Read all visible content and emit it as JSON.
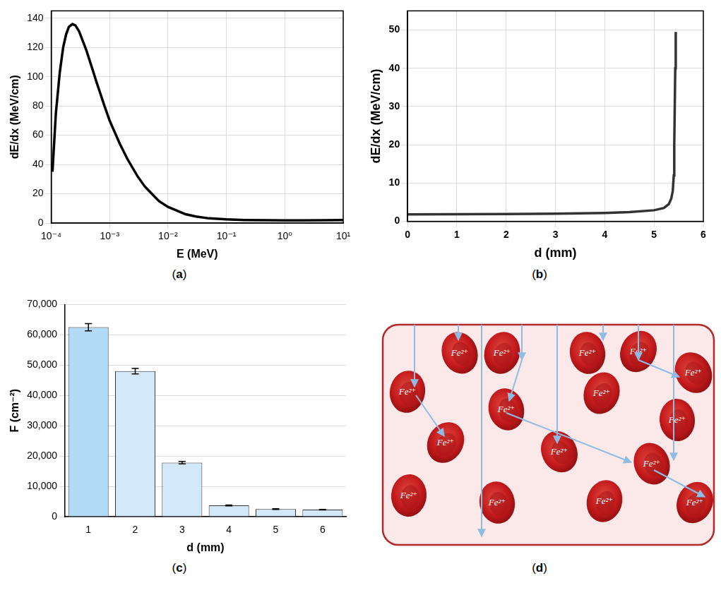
{
  "chart_data": [
    {
      "panel": "(a)",
      "type": "line",
      "x": [
        0.000105,
        0.00012,
        0.00014,
        0.00016,
        0.00018,
        0.0002,
        0.00023,
        0.00026,
        0.0003,
        0.0004,
        0.0005,
        0.0006,
        0.0007,
        0.0008,
        0.001,
        0.0015,
        0.002,
        0.003,
        0.004,
        0.005,
        0.007,
        0.01,
        0.02,
        0.03,
        0.05,
        0.1,
        0.2,
        0.5,
        1,
        2,
        5,
        10
      ],
      "values": [
        35,
        75,
        103,
        120,
        129,
        134,
        136,
        135,
        131,
        118,
        106,
        96,
        88,
        81,
        70,
        54,
        44,
        32,
        25,
        21,
        15,
        11,
        6,
        4.5,
        3.2,
        2.5,
        2.1,
        1.9,
        1.85,
        1.85,
        1.9,
        2.0
      ],
      "color": "#000000",
      "log": "x",
      "xlim": [
        0.0001,
        10
      ],
      "xticks": [
        {
          "value": 0.0001,
          "label": "10⁻⁴"
        },
        {
          "value": 0.001,
          "label": "10⁻³"
        },
        {
          "value": 0.01,
          "label": "10⁻²"
        },
        {
          "value": 0.1,
          "label": "10⁻¹"
        },
        {
          "value": 1,
          "label": "10⁰"
        },
        {
          "value": 10,
          "label": "10¹"
        }
      ],
      "ylim": [
        0,
        145
      ],
      "yticks": [
        0,
        20,
        40,
        60,
        80,
        100,
        120,
        140
      ],
      "x_label": "E (MeV)",
      "y_label": "dE/dx (MeV/cm)",
      "grid": true
    },
    {
      "panel": "(b)",
      "type": "line",
      "x": [
        0,
        1,
        2,
        3,
        4,
        4.5,
        5,
        5.2,
        5.3,
        5.35,
        5.38,
        5.4,
        5.41,
        5.42,
        5.43,
        5.44
      ],
      "values": [
        1.8,
        1.85,
        1.9,
        2.0,
        2.2,
        2.4,
        2.9,
        3.5,
        4.5,
        6,
        8,
        12,
        20,
        30,
        40,
        49.5
      ],
      "color": "#333333",
      "xlim": [
        0,
        6
      ],
      "xticks": [
        0,
        1,
        2,
        3,
        4,
        5,
        6
      ],
      "ylim": [
        0,
        55
      ],
      "yticks": [
        0,
        10,
        20,
        30,
        40,
        50
      ],
      "x_label": "d (mm)",
      "y_label": "dE/dx (MeV/cm)",
      "grid": true
    },
    {
      "panel": "(c)",
      "type": "bar",
      "categories": [
        "1",
        "2",
        "3",
        "4",
        "5",
        "6"
      ],
      "values": [
        62500,
        48000,
        17800,
        3700,
        2500,
        2300
      ],
      "errors": [
        1200,
        900,
        400,
        150,
        100,
        100
      ],
      "colors": [
        "#b3daf6",
        "#d3e9fa",
        "#d3e9fa",
        "#d3e9fa",
        "#d3e9fa",
        "#d3e9fa"
      ],
      "ylim": [
        0,
        70000
      ],
      "yticks": [
        0,
        {
          "value": 10000,
          "label": "10,000"
        },
        {
          "value": 20000,
          "label": "20,000"
        },
        {
          "value": 30000,
          "label": "30,000"
        },
        {
          "value": 40000,
          "label": "40,000"
        },
        {
          "value": 50000,
          "label": "50,000"
        },
        {
          "value": 60000,
          "label": "60,000"
        },
        {
          "value": 70000,
          "label": "70,000"
        }
      ],
      "x_label": "d (mm)",
      "y_label": "F (cm⁻²)",
      "grid": true
    }
  ],
  "diagram": {
    "panel": "(d)",
    "cells": [
      "Fe²⁺",
      "Fe²⁺",
      "Fe²⁺",
      "Fe²⁺",
      "Fe²⁺",
      "Fe²⁺",
      "Fe²⁺",
      "Fe²⁺",
      "Fe²⁺",
      "Fe²⁺",
      "Fe²⁺",
      "Fe²⁺",
      "Fe²⁺",
      "Fe²⁺",
      "Fe²⁺",
      "Fe²⁺"
    ]
  }
}
